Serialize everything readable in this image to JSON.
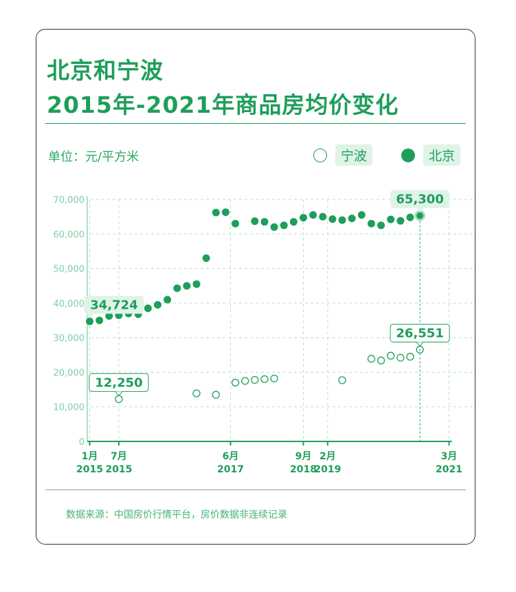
{
  "title_line1": "北京和宁波",
  "title_line2": "2015年-2021年商品房均价变化",
  "unit": "单位：元/平方米",
  "legend": [
    {
      "label": "宁波",
      "marker": "open"
    },
    {
      "label": "北京",
      "marker": "filled"
    }
  ],
  "source": "数据来源：中国房价行情平台，房价数据非连续记录",
  "colors": {
    "accent": "#1e9e5a",
    "grid": "#b5e4c9",
    "axis": "#7ccfa2",
    "label_bg": "#dff3e7"
  },
  "chart_data": {
    "type": "scatter",
    "title": "北京和宁波 2015年-2021年商品房均价变化",
    "ylabel": "单位：元/平方米",
    "ylim": [
      0,
      70000
    ],
    "yticks": [
      0,
      10000,
      20000,
      30000,
      40000,
      50000,
      60000,
      70000
    ],
    "ytick_labels": [
      "0",
      "10,000",
      "20,000",
      "30,000",
      "40,000",
      "50,000",
      "60,000",
      "70,000"
    ],
    "xlim": [
      -0.5,
      73.5
    ],
    "xticks": [
      {
        "x": 0,
        "month": "1月",
        "year": "2015"
      },
      {
        "x": 6,
        "month": "7月",
        "year": "2015"
      },
      {
        "x": 29,
        "month": "6月",
        "year": "2017"
      },
      {
        "x": 44,
        "month": "9月",
        "year": "2018"
      },
      {
        "x": 49,
        "month": "2月",
        "year": "2019"
      },
      {
        "x": 74,
        "month": "3月",
        "year": "2021"
      }
    ],
    "grid": true,
    "legend_position": "top-right",
    "series": [
      {
        "name": "北京",
        "marker": "filled",
        "x": [
          0,
          2,
          4,
          6,
          8,
          10,
          12,
          14,
          16,
          18,
          20,
          22,
          24,
          26,
          28,
          30,
          34,
          36,
          38,
          40,
          42,
          44,
          46,
          48,
          50,
          52,
          54,
          56,
          58,
          60,
          62,
          64,
          66,
          68
        ],
        "y": [
          34724,
          35000,
          36300,
          36500,
          37000,
          36800,
          38500,
          39500,
          41000,
          44300,
          45000,
          45500,
          53000,
          66200,
          66300,
          63000,
          63700,
          63500,
          62000,
          62500,
          63500,
          64700,
          65500,
          65000,
          64300,
          64000,
          64500,
          65500,
          63000,
          62500,
          64200,
          63800,
          64800,
          65300
        ]
      },
      {
        "name": "宁波",
        "marker": "open",
        "x": [
          6,
          22,
          26,
          30,
          32,
          34,
          36,
          38,
          52,
          58,
          60,
          62,
          64,
          66,
          68
        ],
        "y": [
          12250,
          13900,
          13500,
          17000,
          17500,
          17800,
          18000,
          18200,
          17700,
          23900,
          23400,
          24800,
          24200,
          24500,
          26551
        ]
      }
    ],
    "annotations": [
      {
        "series": "北京",
        "x": 0,
        "y": 34724,
        "label": "34,724"
      },
      {
        "series": "北京",
        "x": 68,
        "y": 65300,
        "label": "65,300"
      },
      {
        "series": "宁波",
        "x": 6,
        "y": 12250,
        "label": "12,250"
      },
      {
        "series": "宁波",
        "x": 68,
        "y": 26551,
        "label": "26,551"
      }
    ]
  }
}
